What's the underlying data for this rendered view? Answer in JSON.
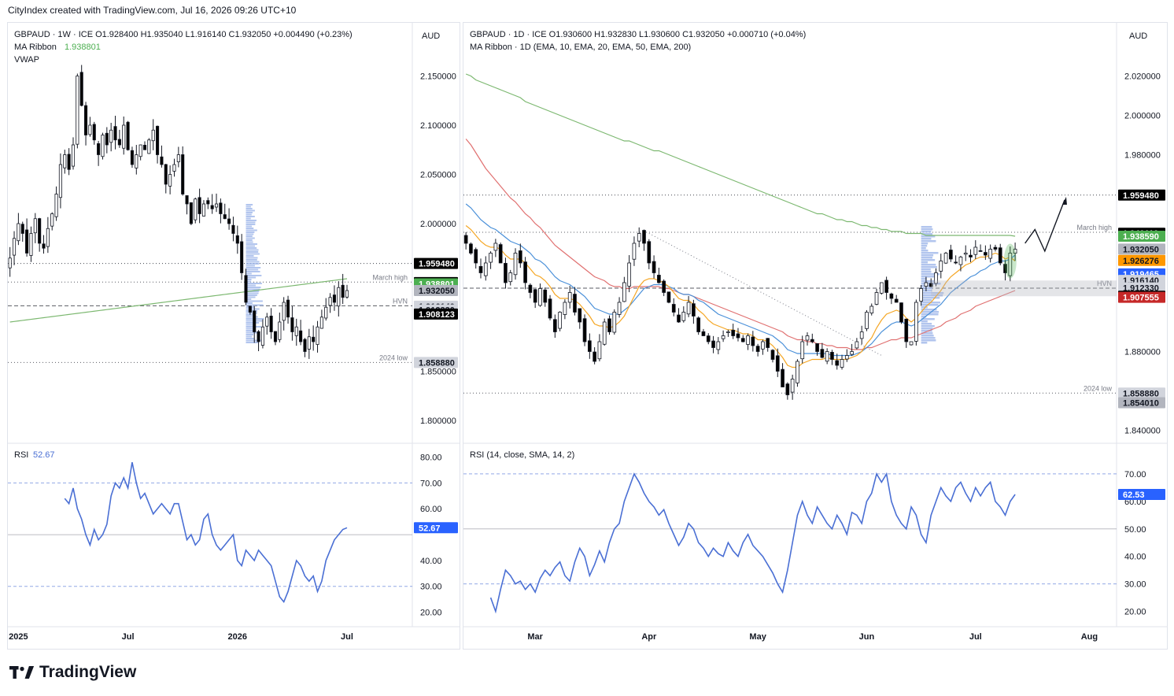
{
  "header": {
    "created_by": "CityIndex created with TradingView.com, Jul 16, 2026 09:26 UTC+10"
  },
  "brand": {
    "name": "TradingView"
  },
  "left_chart": {
    "legend_main": "GBPAUD · 1W · ICE  O1.928400  H1.935040  L1.916140  C1.932050  +0.004490 (+0.23%)",
    "legend_ma_label": "MA Ribbon",
    "legend_ma_value": "1.938801",
    "legend_vwap": "VWAP",
    "currency": "AUD",
    "rsi_label": "RSI",
    "rsi_value": "52.67"
  },
  "right_chart": {
    "legend_main": "GBPAUD · 1D · ICE  O1.930600  H1.932830  L1.930600  C1.932050  +0.000710 (+0.04%)",
    "legend_ma": "MA Ribbon · 1D (EMA, 10, EMA, 20, EMA, 50, EMA, 200)",
    "currency": "AUD",
    "rsi_label": "RSI (14, close, SMA, 14, 2)",
    "rsi_value": "62.53"
  },
  "colors": {
    "up": "#ffffff",
    "down": "#000000",
    "wick": "#131722",
    "ema10": "#f5a623",
    "ema20": "#4a90d9",
    "ema50": "#e07070",
    "ema200": "#7cb870",
    "rsi": "#4a6fd4",
    "vp": "#9fb7ea",
    "green_badge": "#4caf50",
    "orange_badge": "#ff9800",
    "blue_badge": "#2962ff",
    "red_badge": "#c62828",
    "black_badge": "#000000",
    "gray_badge": "#b2b5be"
  },
  "chart_data": [
    {
      "type": "candlestick",
      "title": "GBPAUD · 1W · ICE",
      "timeframe": "1W",
      "ylim": [
        1.78,
        2.18
      ],
      "rsi_ylim": [
        15,
        82
      ],
      "y_ticks": [
        "2.150000",
        "2.100000",
        "2.050000",
        "2.000000",
        "1.850000",
        "1.800000"
      ],
      "x_ticks": [
        {
          "label": "2025",
          "index": 2
        },
        {
          "label": "Jul",
          "index": 28
        },
        {
          "label": "2026",
          "index": 54
        },
        {
          "label": "Jul",
          "index": 80
        }
      ],
      "rsi_ticks": [
        "80.00",
        "70.00",
        "60.00",
        "40.00",
        "30.00",
        "20.00"
      ],
      "closes": [
        1.965,
        1.985,
        2.0,
        1.99,
        1.97,
        1.99,
        2.005,
        1.98,
        1.975,
        1.995,
        2.01,
        2.03,
        2.06,
        2.07,
        2.055,
        2.08,
        2.15,
        2.12,
        2.09,
        2.1,
        2.085,
        2.07,
        2.09,
        2.08,
        2.095,
        2.085,
        2.08,
        2.1,
        2.075,
        2.06,
        2.07,
        2.08,
        2.075,
        2.085,
        2.095,
        2.07,
        2.06,
        2.04,
        2.05,
        2.06,
        2.07,
        2.03,
        2.02,
        2.0,
        2.025,
        2.01,
        2.02,
        2.02,
        2.015,
        2.02,
        2.01,
        2.005,
        2.0,
        1.99,
        1.98,
        1.95,
        1.92,
        1.91,
        1.89,
        1.88,
        1.895,
        1.905,
        1.89,
        1.88,
        1.9,
        1.92,
        1.905,
        1.89,
        1.895,
        1.88,
        1.87,
        1.885,
        1.88,
        1.895,
        1.905,
        1.915,
        1.925,
        1.92,
        1.935,
        1.925,
        1.932
      ],
      "rsi": [
        64,
        62,
        68,
        60,
        56,
        50,
        46,
        52,
        48,
        50,
        54,
        65,
        70,
        68,
        72,
        68,
        78,
        70,
        64,
        66,
        62,
        58,
        60,
        62,
        60,
        58,
        62,
        62,
        55,
        48,
        50,
        46,
        48,
        56,
        58,
        50,
        46,
        44,
        46,
        48,
        50,
        40,
        38,
        44,
        42,
        40,
        44,
        42,
        40,
        38,
        32,
        26,
        24,
        28,
        34,
        40,
        38,
        34,
        32,
        34,
        28,
        32,
        40,
        44,
        48,
        50,
        52,
        52.67
      ],
      "annotations": [
        {
          "label": "March high",
          "price": 1.9406
        },
        {
          "label": "HVN",
          "price": 1.9165
        },
        {
          "label": "2024 low",
          "price": 1.85888
        }
      ],
      "price_badges": [
        {
          "value": "1.959480",
          "price": 1.95948,
          "style": "black"
        },
        {
          "value": "1.940110",
          "price": 1.94011,
          "style": "black"
        },
        {
          "value": "1.938801",
          "price": 1.938801,
          "style": "green"
        },
        {
          "value": "1.932050",
          "price": 1.93205,
          "style": "gray"
        },
        {
          "value": "1.916140",
          "price": 1.91614,
          "style": "lightgray"
        },
        {
          "value": "1.912330",
          "price": 1.91233,
          "style": "lightgray"
        },
        {
          "value": "1.908123",
          "price": 1.908123,
          "style": "black"
        },
        {
          "value": "1.858880",
          "price": 1.85888,
          "style": "lightgray"
        }
      ],
      "rsi_badge": "52.67"
    },
    {
      "type": "candlestick",
      "title": "GBPAUD · 1D · ICE",
      "timeframe": "1D",
      "ylim": [
        1.835,
        2.035
      ],
      "rsi_ylim": [
        15,
        78
      ],
      "y_ticks": [
        "2.020000",
        "2.000000",
        "1.980000",
        "1.880000",
        "1.840000"
      ],
      "x_ticks": [
        {
          "label": "Mar",
          "index": 14
        },
        {
          "label": "Apr",
          "index": 37
        },
        {
          "label": "May",
          "index": 59
        },
        {
          "label": "Jun",
          "index": 81
        },
        {
          "label": "Jul",
          "index": 103
        },
        {
          "label": "Aug",
          "index": 126
        }
      ],
      "rsi_ticks": [
        "70.00",
        "60.00",
        "50.00",
        "40.00",
        "30.00",
        "20.00"
      ],
      "closes": [
        1.935,
        1.93,
        1.925,
        1.92,
        1.925,
        1.93,
        1.935,
        1.925,
        1.915,
        1.92,
        1.93,
        1.925,
        1.915,
        1.91,
        1.905,
        1.912,
        1.905,
        1.897,
        1.89,
        1.9,
        1.905,
        1.91,
        1.9,
        1.895,
        1.885,
        1.88,
        1.875,
        1.885,
        1.895,
        1.89,
        1.9,
        1.905,
        1.915,
        1.925,
        1.935,
        1.94,
        1.935,
        1.925,
        1.92,
        1.915,
        1.91,
        1.905,
        1.9,
        1.895,
        1.9,
        1.905,
        1.898,
        1.89,
        1.888,
        1.885,
        1.882,
        1.885,
        1.888,
        1.89,
        1.888,
        1.887,
        1.885,
        1.888,
        1.883,
        1.88,
        1.885,
        1.882,
        1.876,
        1.87,
        1.862,
        1.858,
        1.866,
        1.875,
        1.885,
        1.888,
        1.885,
        1.88,
        1.877,
        1.88,
        1.876,
        1.873,
        1.876,
        1.878,
        1.88,
        1.885,
        1.89,
        1.9,
        1.903,
        1.91,
        1.915,
        1.91,
        1.907,
        1.905,
        1.895,
        1.885,
        1.885,
        1.905,
        1.912,
        1.915,
        1.913,
        1.92,
        1.926,
        1.93,
        1.927,
        1.925,
        1.928,
        1.93,
        1.928,
        1.933,
        1.931,
        1.929,
        1.932,
        1.932,
        1.925,
        1.92,
        1.93,
        1.932
      ],
      "ema10": [
        1.944,
        1.942,
        1.939,
        1.936,
        1.934,
        1.933,
        1.933,
        1.932,
        1.929,
        1.927,
        1.927,
        1.927,
        1.925,
        1.922,
        1.919,
        1.918,
        1.916,
        1.913,
        1.909,
        1.907,
        1.907,
        1.907,
        1.906,
        1.904,
        1.901,
        1.898,
        1.894,
        1.893,
        1.893,
        1.892,
        1.893,
        1.895,
        1.898,
        1.903,
        1.908,
        1.913,
        1.916,
        1.917,
        1.917,
        1.916,
        1.915,
        1.913,
        1.91,
        1.907,
        1.906,
        1.906,
        1.904,
        1.901,
        1.899,
        1.896,
        1.894,
        1.893,
        1.892,
        1.891,
        1.891,
        1.89,
        1.889,
        1.889,
        1.888,
        1.886,
        1.886,
        1.885,
        1.883,
        1.88,
        1.877,
        1.873,
        1.872,
        1.872,
        1.874,
        1.875,
        1.876,
        1.876,
        1.876,
        1.877,
        1.876,
        1.876,
        1.876,
        1.876,
        1.877,
        1.878,
        1.88,
        1.884,
        1.887,
        1.892,
        1.896,
        1.899,
        1.9,
        1.901,
        1.9,
        1.897,
        1.895,
        1.897,
        1.9,
        1.903,
        1.905,
        1.908,
        1.911,
        1.915,
        1.918,
        1.92,
        1.922,
        1.924,
        1.925,
        1.927,
        1.928,
        1.928,
        1.929,
        1.93,
        1.929,
        1.927,
        1.928,
        1.926
      ],
      "ema20": [
        1.955,
        1.953,
        1.95,
        1.947,
        1.945,
        1.943,
        1.942,
        1.94,
        1.938,
        1.936,
        1.935,
        1.934,
        1.932,
        1.93,
        1.927,
        1.926,
        1.924,
        1.921,
        1.918,
        1.916,
        1.915,
        1.914,
        1.912,
        1.91,
        1.908,
        1.905,
        1.902,
        1.901,
        1.9,
        1.899,
        1.899,
        1.899,
        1.901,
        1.903,
        1.906,
        1.909,
        1.912,
        1.913,
        1.914,
        1.914,
        1.914,
        1.913,
        1.912,
        1.91,
        1.909,
        1.909,
        1.908,
        1.906,
        1.905,
        1.903,
        1.901,
        1.899,
        1.898,
        1.897,
        1.896,
        1.895,
        1.894,
        1.893,
        1.892,
        1.891,
        1.89,
        1.889,
        1.888,
        1.886,
        1.884,
        1.881,
        1.88,
        1.879,
        1.879,
        1.879,
        1.879,
        1.879,
        1.879,
        1.879,
        1.878,
        1.878,
        1.878,
        1.878,
        1.878,
        1.879,
        1.88,
        1.882,
        1.884,
        1.887,
        1.89,
        1.892,
        1.894,
        1.895,
        1.895,
        1.894,
        1.893,
        1.894,
        1.896,
        1.898,
        1.9,
        1.902,
        1.904,
        1.907,
        1.91,
        1.912,
        1.914,
        1.916,
        1.918,
        1.919,
        1.921,
        1.922,
        1.924,
        1.925,
        1.926,
        1.926,
        1.927,
        1.929
      ],
      "ema50": [
        1.988,
        1.985,
        1.981,
        1.977,
        1.973,
        1.97,
        1.967,
        1.964,
        1.961,
        1.958,
        1.956,
        1.953,
        1.95,
        1.948,
        1.945,
        1.943,
        1.94,
        1.937,
        1.934,
        1.932,
        1.93,
        1.928,
        1.926,
        1.924,
        1.922,
        1.92,
        1.918,
        1.917,
        1.916,
        1.914,
        1.913,
        1.913,
        1.912,
        1.912,
        1.913,
        1.913,
        1.913,
        1.913,
        1.913,
        1.913,
        1.912,
        1.912,
        1.911,
        1.91,
        1.909,
        1.909,
        1.908,
        1.907,
        1.906,
        1.905,
        1.904,
        1.903,
        1.902,
        1.901,
        1.9,
        1.899,
        1.898,
        1.897,
        1.896,
        1.895,
        1.894,
        1.893,
        1.892,
        1.891,
        1.89,
        1.888,
        1.887,
        1.886,
        1.886,
        1.885,
        1.885,
        1.884,
        1.884,
        1.883,
        1.883,
        1.882,
        1.882,
        1.882,
        1.881,
        1.881,
        1.881,
        1.882,
        1.882,
        1.883,
        1.884,
        1.885,
        1.886,
        1.886,
        1.887,
        1.887,
        1.887,
        1.888,
        1.889,
        1.89,
        1.891,
        1.892,
        1.893,
        1.895,
        1.896,
        1.897,
        1.899,
        1.9,
        1.901,
        1.903,
        1.904,
        1.905,
        1.906,
        1.907,
        1.908,
        1.909,
        1.91,
        1.911
      ],
      "ema200": [
        2.021,
        2.02,
        2.018,
        2.017,
        2.016,
        2.015,
        2.014,
        2.013,
        2.012,
        2.011,
        2.01,
        2.009,
        2.007,
        2.006,
        2.005,
        2.004,
        2.003,
        2.002,
        2.001,
        2.0,
        1.999,
        1.998,
        1.997,
        1.996,
        1.995,
        1.994,
        1.993,
        1.992,
        1.991,
        1.99,
        1.989,
        1.988,
        1.987,
        1.987,
        1.986,
        1.985,
        1.984,
        1.983,
        1.982,
        1.982,
        1.981,
        1.98,
        1.979,
        1.978,
        1.977,
        1.976,
        1.975,
        1.974,
        1.973,
        1.972,
        1.971,
        1.97,
        1.969,
        1.968,
        1.967,
        1.966,
        1.965,
        1.964,
        1.963,
        1.962,
        1.961,
        1.96,
        1.959,
        1.958,
        1.957,
        1.956,
        1.955,
        1.954,
        1.953,
        1.952,
        1.951,
        1.95,
        1.95,
        1.949,
        1.948,
        1.947,
        1.947,
        1.946,
        1.946,
        1.945,
        1.944,
        1.944,
        1.943,
        1.943,
        1.942,
        1.942,
        1.941,
        1.941,
        1.941,
        1.94,
        1.94,
        1.94,
        1.94,
        1.939,
        1.939,
        1.939,
        1.939,
        1.939,
        1.939,
        1.939,
        1.939,
        1.939,
        1.939,
        1.939,
        1.939,
        1.939,
        1.939,
        1.939,
        1.939,
        1.939,
        1.939,
        1.9386
      ],
      "rsi": [
        25,
        20,
        28,
        35,
        33,
        30,
        31,
        28,
        30,
        27,
        32,
        35,
        33,
        36,
        38,
        33,
        31,
        38,
        43,
        40,
        33,
        37,
        42,
        38,
        45,
        50,
        52,
        60,
        65,
        70,
        67,
        63,
        60,
        58,
        55,
        57,
        52,
        48,
        44,
        47,
        52,
        50,
        45,
        43,
        40,
        43,
        41,
        40,
        45,
        42,
        40,
        45,
        48,
        44,
        42,
        40,
        37,
        34,
        30,
        27,
        35,
        45,
        55,
        60,
        55,
        52,
        58,
        55,
        52,
        50,
        55,
        52,
        48,
        56,
        55,
        52,
        60,
        63,
        70,
        67,
        70,
        60,
        55,
        52,
        50,
        58,
        55,
        48,
        45,
        55,
        60,
        65,
        62,
        60,
        65,
        67,
        63,
        60,
        65,
        62,
        65,
        67,
        60,
        58,
        55,
        60,
        62.53
      ],
      "annotations": [
        {
          "label": "March high",
          "price": 1.9406
        },
        {
          "label": "HVN",
          "price": 1.9122
        },
        {
          "label": "2024 low",
          "price": 1.85888
        }
      ],
      "price_badges": [
        {
          "value": "1.959480",
          "price": 1.95948,
          "style": "black"
        },
        {
          "value": "1.940110",
          "price": 1.94011,
          "style": "black"
        },
        {
          "value": "1.938590",
          "price": 1.93859,
          "style": "green"
        },
        {
          "value": "1.932050",
          "price": 1.93205,
          "style": "gray"
        },
        {
          "value": "1.926276",
          "price": 1.926276,
          "style": "orange"
        },
        {
          "value": "1.919465",
          "price": 1.919465,
          "style": "blue"
        },
        {
          "value": "1.916140",
          "price": 1.91614,
          "style": "lightgray"
        },
        {
          "value": "1.912330",
          "price": 1.91233,
          "style": "lightgray"
        },
        {
          "value": "1.908123",
          "price": 1.908123,
          "style": "black"
        },
        {
          "value": "1.907555",
          "price": 1.907555,
          "style": "red"
        },
        {
          "value": "1.858880",
          "price": 1.85888,
          "style": "lightgray"
        },
        {
          "value": "1.854010",
          "price": 1.85401,
          "style": "gray"
        }
      ],
      "rsi_badge": "62.53"
    }
  ]
}
